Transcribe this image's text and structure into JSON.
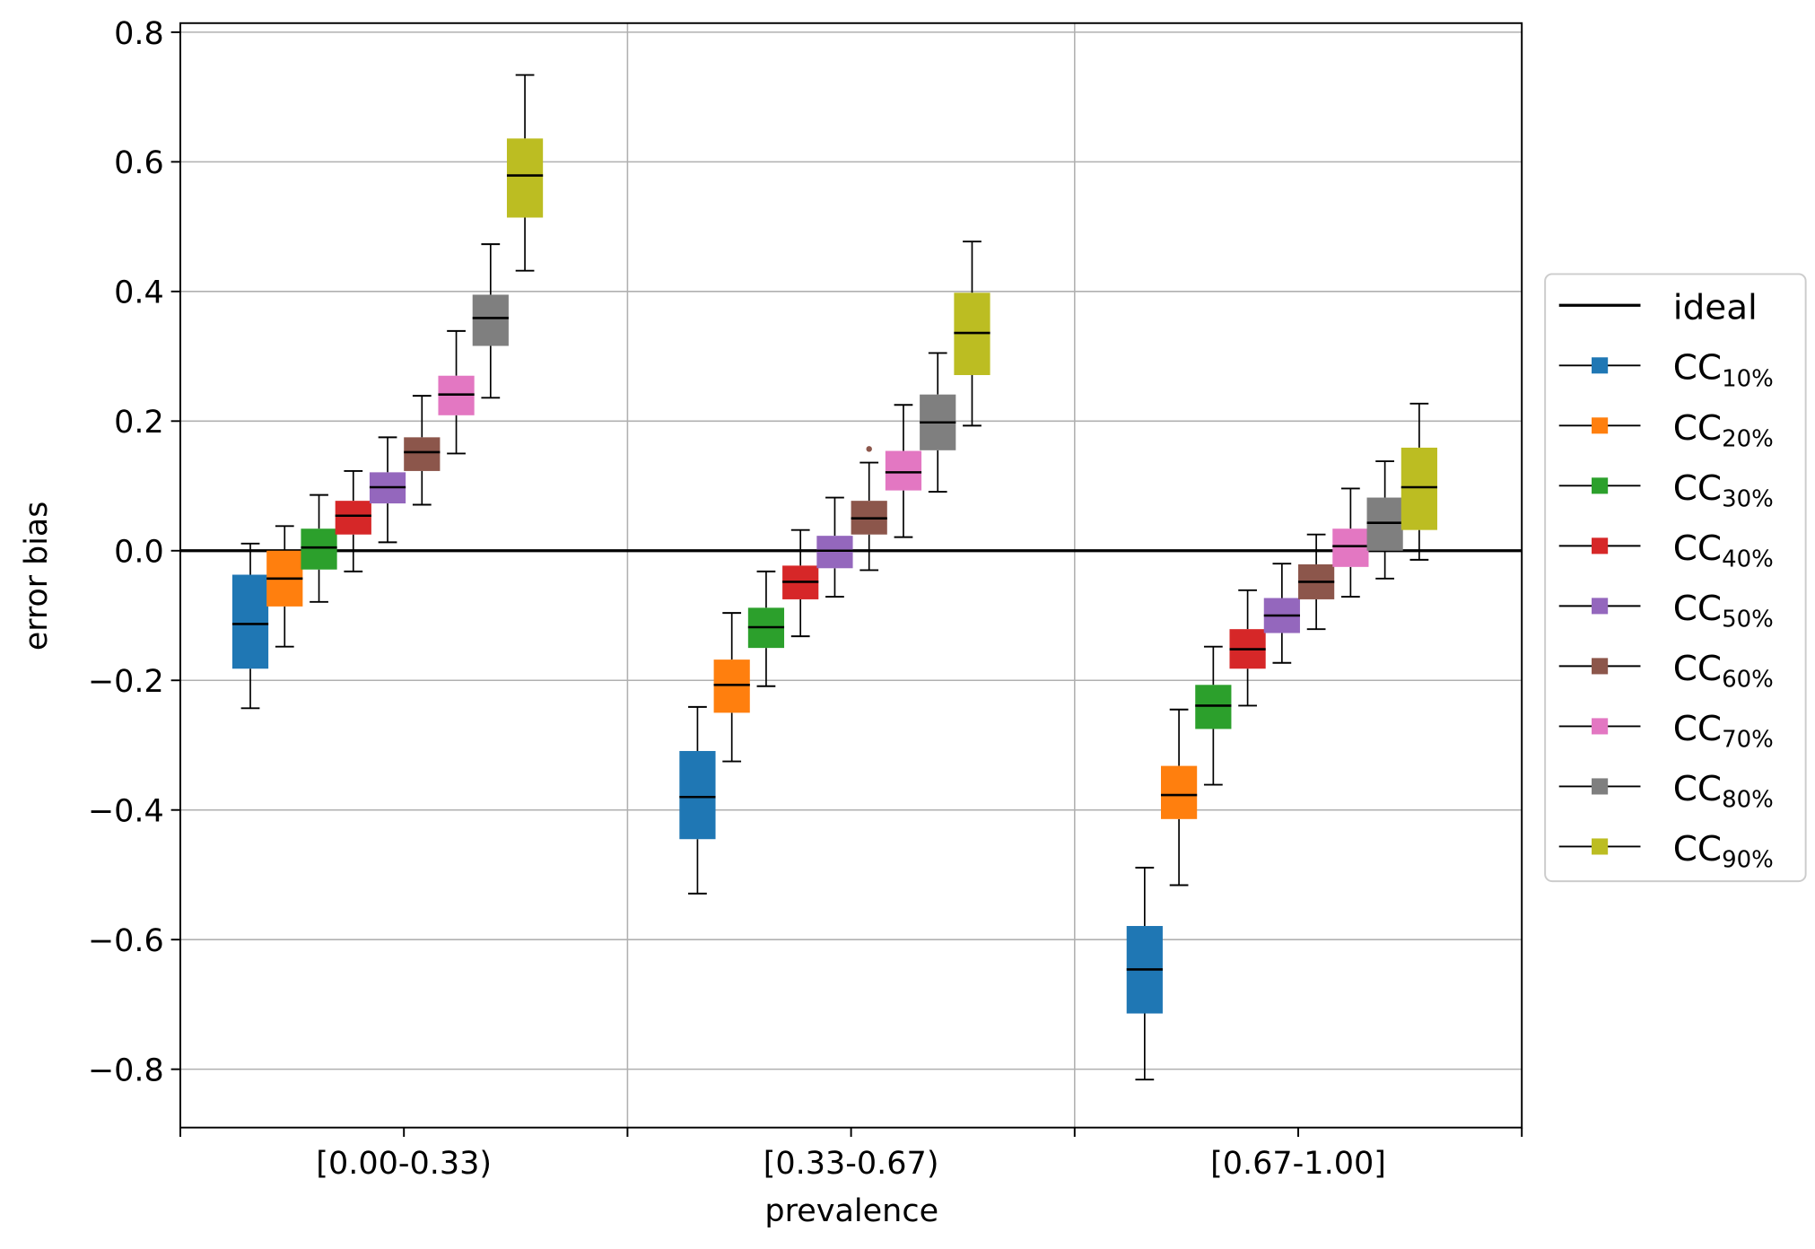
{
  "chart_data": {
    "type": "box",
    "xlabel": "prevalence",
    "ylabel": "error bias",
    "ylim": [
      -0.89,
      0.814
    ],
    "yticks": [
      "−0.8",
      "−0.6",
      "−0.4",
      "−0.2",
      "0.0",
      "0.2",
      "0.4",
      "0.6",
      "0.8"
    ],
    "ytick_values": [
      -0.8,
      -0.6,
      -0.4,
      -0.2,
      0.0,
      0.2,
      0.4,
      0.6,
      0.8
    ],
    "categories": [
      "[0.00-0.33)",
      "[0.33-0.67)",
      "[0.67-1.00]"
    ],
    "grid": true,
    "legend_position": "right-outside",
    "ideal": {
      "name": "ideal",
      "value": 0.0,
      "color": "#000000"
    },
    "series": [
      {
        "name": "CC",
        "sub": "10%",
        "color": "#1f77b4",
        "boxes": [
          {
            "whislo": -0.243,
            "q1": -0.182,
            "med": -0.113,
            "q3": -0.037,
            "whishi": 0.011
          },
          {
            "whislo": -0.529,
            "q1": -0.445,
            "med": -0.38,
            "q3": -0.309,
            "whishi": -0.241
          },
          {
            "whislo": -0.816,
            "q1": -0.714,
            "med": -0.646,
            "q3": -0.579,
            "whishi": -0.489
          }
        ]
      },
      {
        "name": "CC",
        "sub": "20%",
        "color": "#ff7f0e",
        "boxes": [
          {
            "whislo": -0.148,
            "q1": -0.086,
            "med": -0.043,
            "q3": 0.0,
            "whishi": 0.038
          },
          {
            "whislo": -0.325,
            "q1": -0.25,
            "med": -0.207,
            "q3": -0.168,
            "whishi": -0.096
          },
          {
            "whislo": -0.516,
            "q1": -0.414,
            "med": -0.377,
            "q3": -0.332,
            "whishi": -0.245
          }
        ]
      },
      {
        "name": "CC",
        "sub": "30%",
        "color": "#2ca02c",
        "boxes": [
          {
            "whislo": -0.079,
            "q1": -0.029,
            "med": 0.005,
            "q3": 0.034,
            "whishi": 0.086
          },
          {
            "whislo": -0.209,
            "q1": -0.15,
            "med": -0.118,
            "q3": -0.088,
            "whishi": -0.032
          },
          {
            "whislo": -0.361,
            "q1": -0.275,
            "med": -0.239,
            "q3": -0.207,
            "whishi": -0.148
          }
        ]
      },
      {
        "name": "CC",
        "sub": "40%",
        "color": "#d62728",
        "boxes": [
          {
            "whislo": -0.032,
            "q1": 0.025,
            "med": 0.054,
            "q3": 0.077,
            "whishi": 0.123
          },
          {
            "whislo": -0.132,
            "q1": -0.075,
            "med": -0.048,
            "q3": -0.023,
            "whishi": 0.032
          },
          {
            "whislo": -0.239,
            "q1": -0.182,
            "med": -0.152,
            "q3": -0.121,
            "whishi": -0.061
          }
        ]
      },
      {
        "name": "CC",
        "sub": "50%",
        "color": "#9467bd",
        "boxes": [
          {
            "whislo": 0.013,
            "q1": 0.073,
            "med": 0.098,
            "q3": 0.121,
            "whishi": 0.175
          },
          {
            "whislo": -0.071,
            "q1": -0.027,
            "med": 0.0,
            "q3": 0.023,
            "whishi": 0.082
          },
          {
            "whislo": -0.173,
            "q1": -0.127,
            "med": -0.1,
            "q3": -0.073,
            "whishi": -0.02
          }
        ]
      },
      {
        "name": "CC",
        "sub": "60%",
        "color": "#8c564b",
        "boxes": [
          {
            "whislo": 0.071,
            "q1": 0.123,
            "med": 0.152,
            "q3": 0.175,
            "whishi": 0.239
          },
          {
            "whislo": -0.03,
            "q1": 0.025,
            "med": 0.05,
            "q3": 0.077,
            "whishi": 0.136,
            "outliers": [
              0.157
            ]
          },
          {
            "whislo": -0.121,
            "q1": -0.075,
            "med": -0.048,
            "q3": -0.021,
            "whishi": 0.025
          }
        ]
      },
      {
        "name": "CC",
        "sub": "70%",
        "color": "#e377c2",
        "boxes": [
          {
            "whislo": 0.15,
            "q1": 0.209,
            "med": 0.241,
            "q3": 0.27,
            "whishi": 0.339
          },
          {
            "whislo": 0.021,
            "q1": 0.093,
            "med": 0.121,
            "q3": 0.154,
            "whishi": 0.225
          },
          {
            "whislo": -0.071,
            "q1": -0.025,
            "med": 0.007,
            "q3": 0.034,
            "whishi": 0.096
          }
        ]
      },
      {
        "name": "CC",
        "sub": "80%",
        "color": "#7f7f7f",
        "boxes": [
          {
            "whislo": 0.236,
            "q1": 0.316,
            "med": 0.359,
            "q3": 0.395,
            "whishi": 0.473
          },
          {
            "whislo": 0.091,
            "q1": 0.155,
            "med": 0.198,
            "q3": 0.241,
            "whishi": 0.305
          },
          {
            "whislo": -0.043,
            "q1": 0.0,
            "med": 0.043,
            "q3": 0.082,
            "whishi": 0.138
          }
        ]
      },
      {
        "name": "CC",
        "sub": "90%",
        "color": "#bcbd22",
        "boxes": [
          {
            "whislo": 0.432,
            "q1": 0.514,
            "med": 0.579,
            "q3": 0.636,
            "whishi": 0.734
          },
          {
            "whislo": 0.193,
            "q1": 0.271,
            "med": 0.336,
            "q3": 0.398,
            "whishi": 0.477
          },
          {
            "whislo": -0.014,
            "q1": 0.032,
            "med": 0.098,
            "q3": 0.159,
            "whishi": 0.227
          }
        ]
      }
    ]
  }
}
